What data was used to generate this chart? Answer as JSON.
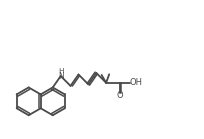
{
  "bg_color": "#ffffff",
  "line_color": "#4a4a4a",
  "line_width": 1.3,
  "fig_width": 2.04,
  "fig_height": 1.39,
  "dpi": 100,
  "xlim": [
    0,
    10.5
  ],
  "ylim": [
    0,
    6.8
  ]
}
